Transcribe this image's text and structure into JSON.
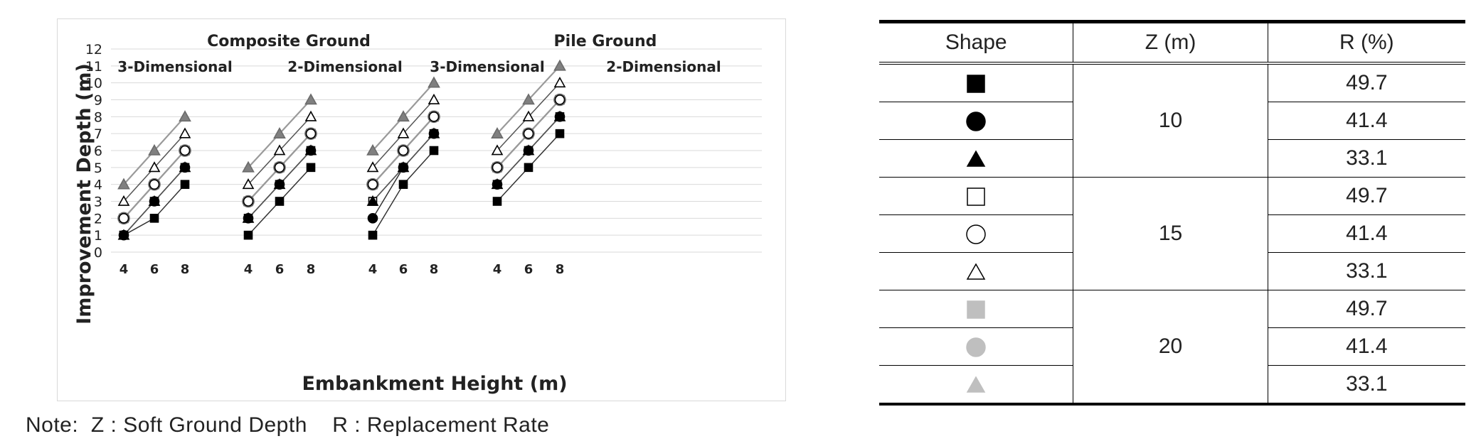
{
  "chart_data": {
    "type": "line",
    "ylabel": "Improvement Depth (m)",
    "xlabel": "Embankment Height (m)",
    "ylim": [
      0,
      12
    ],
    "yticks": [
      0,
      1,
      2,
      3,
      4,
      5,
      6,
      7,
      8,
      9,
      10,
      11,
      12
    ],
    "grid": true,
    "categories": [
      "4",
      "6",
      "8"
    ],
    "group_titles": [
      "Composite Ground",
      "Pile Ground"
    ],
    "panels": [
      {
        "label": "3-Dimensional",
        "group": "Composite Ground",
        "series": [
          {
            "shape": "square",
            "fill": "black",
            "z": 10,
            "r": 49.7,
            "values": [
              1,
              2,
              4
            ]
          },
          {
            "shape": "circle",
            "fill": "black",
            "z": 10,
            "r": 41.4,
            "values": [
              1,
              3,
              5
            ]
          },
          {
            "shape": "triangle",
            "fill": "black",
            "z": 10,
            "r": 33.1,
            "values": [
              1,
              3,
              5
            ]
          },
          {
            "shape": "square",
            "fill": "white",
            "z": 15,
            "r": 49.7,
            "values": [
              1,
              3,
              5
            ]
          },
          {
            "shape": "circle",
            "fill": "white",
            "z": 15,
            "r": 41.4,
            "values": [
              2,
              4,
              6
            ]
          },
          {
            "shape": "triangle",
            "fill": "white",
            "z": 15,
            "r": 33.1,
            "values": [
              3,
              5,
              7
            ]
          },
          {
            "shape": "square",
            "fill": "gray",
            "z": 20,
            "r": 49.7,
            "values": [
              2,
              4,
              6
            ]
          },
          {
            "shape": "circle",
            "fill": "gray",
            "z": 20,
            "r": 41.4,
            "values": [
              2,
              4,
              6
            ]
          },
          {
            "shape": "triangle",
            "fill": "gray",
            "z": 20,
            "r": 33.1,
            "values": [
              4,
              6,
              8
            ]
          }
        ]
      },
      {
        "label": "2-Dimensional",
        "group": "Composite Ground",
        "series": [
          {
            "shape": "square",
            "fill": "black",
            "z": 10,
            "r": 49.7,
            "values": [
              1,
              3,
              5
            ]
          },
          {
            "shape": "circle",
            "fill": "black",
            "z": 10,
            "r": 41.4,
            "values": [
              2,
              4,
              6
            ]
          },
          {
            "shape": "triangle",
            "fill": "black",
            "z": 10,
            "r": 33.1,
            "values": [
              2,
              4,
              6
            ]
          },
          {
            "shape": "square",
            "fill": "white",
            "z": 15,
            "r": 49.7,
            "values": [
              2,
              4,
              6
            ]
          },
          {
            "shape": "circle",
            "fill": "white",
            "z": 15,
            "r": 41.4,
            "values": [
              3,
              5,
              7
            ]
          },
          {
            "shape": "triangle",
            "fill": "white",
            "z": 15,
            "r": 33.1,
            "values": [
              4,
              6,
              8
            ]
          },
          {
            "shape": "square",
            "fill": "gray",
            "z": 20,
            "r": 49.7,
            "values": [
              3,
              5,
              7
            ]
          },
          {
            "shape": "circle",
            "fill": "gray",
            "z": 20,
            "r": 41.4,
            "values": [
              3,
              5,
              7
            ]
          },
          {
            "shape": "triangle",
            "fill": "gray",
            "z": 20,
            "r": 33.1,
            "values": [
              5,
              7,
              9
            ]
          }
        ]
      },
      {
        "label": "3-Dimensional",
        "group": "Pile Ground",
        "series": [
          {
            "shape": "square",
            "fill": "black",
            "z": 10,
            "r": 49.7,
            "values": [
              1,
              4,
              6
            ]
          },
          {
            "shape": "circle",
            "fill": "black",
            "z": 10,
            "r": 41.4,
            "values": [
              2,
              5,
              7
            ]
          },
          {
            "shape": "triangle",
            "fill": "black",
            "z": 10,
            "r": 33.1,
            "values": [
              3,
              5,
              7
            ]
          },
          {
            "shape": "square",
            "fill": "white",
            "z": 15,
            "r": 49.7,
            "values": [
              3,
              5,
              7
            ]
          },
          {
            "shape": "circle",
            "fill": "white",
            "z": 15,
            "r": 41.4,
            "values": [
              4,
              6,
              8
            ]
          },
          {
            "shape": "triangle",
            "fill": "white",
            "z": 15,
            "r": 33.1,
            "values": [
              5,
              7,
              9
            ]
          },
          {
            "shape": "square",
            "fill": "gray",
            "z": 20,
            "r": 49.7,
            "values": [
              4,
              6,
              8
            ]
          },
          {
            "shape": "circle",
            "fill": "gray",
            "z": 20,
            "r": 41.4,
            "values": [
              4,
              6,
              8
            ]
          },
          {
            "shape": "triangle",
            "fill": "gray",
            "z": 20,
            "r": 33.1,
            "values": [
              6,
              8,
              10
            ]
          }
        ]
      },
      {
        "label": "2-Dimensional",
        "group": "Pile Ground",
        "series": [
          {
            "shape": "square",
            "fill": "black",
            "z": 10,
            "r": 49.7,
            "values": [
              3,
              5,
              7
            ]
          },
          {
            "shape": "circle",
            "fill": "black",
            "z": 10,
            "r": 41.4,
            "values": [
              4,
              6,
              8
            ]
          },
          {
            "shape": "triangle",
            "fill": "black",
            "z": 10,
            "r": 33.1,
            "values": [
              4,
              6,
              8
            ]
          },
          {
            "shape": "square",
            "fill": "white",
            "z": 15,
            "r": 49.7,
            "values": [
              4,
              6,
              8
            ]
          },
          {
            "shape": "circle",
            "fill": "white",
            "z": 15,
            "r": 41.4,
            "values": [
              5,
              7,
              9
            ]
          },
          {
            "shape": "triangle",
            "fill": "white",
            "z": 15,
            "r": 33.1,
            "values": [
              6,
              8,
              10
            ]
          },
          {
            "shape": "square",
            "fill": "gray",
            "z": 20,
            "r": 49.7,
            "values": [
              5,
              7,
              9
            ]
          },
          {
            "shape": "circle",
            "fill": "gray",
            "z": 20,
            "r": 41.4,
            "values": [
              5,
              7,
              9
            ]
          },
          {
            "shape": "triangle",
            "fill": "gray",
            "z": 20,
            "r": 33.1,
            "values": [
              7,
              9,
              11
            ]
          }
        ]
      }
    ]
  },
  "legend_table": {
    "headers": [
      "Shape",
      "Z (m)",
      "R (%)"
    ],
    "rows": [
      {
        "shape": "square",
        "fill": "black",
        "r": "49.7"
      },
      {
        "shape": "circle",
        "fill": "black",
        "r": "41.4"
      },
      {
        "shape": "triangle",
        "fill": "black",
        "r": "33.1"
      },
      {
        "shape": "square",
        "fill": "white",
        "r": "49.7"
      },
      {
        "shape": "circle",
        "fill": "white",
        "r": "41.4"
      },
      {
        "shape": "triangle",
        "fill": "white",
        "r": "33.1"
      },
      {
        "shape": "square",
        "fill": "gray",
        "r": "49.7"
      },
      {
        "shape": "circle",
        "fill": "gray",
        "r": "41.4"
      },
      {
        "shape": "triangle",
        "fill": "gray",
        "r": "33.1"
      }
    ],
    "z_groups": [
      "10",
      "15",
      "20"
    ]
  },
  "colors": {
    "black": "#000000",
    "white": "#ffffff",
    "gray": "#808080",
    "legend_gray": "#bfbfbf",
    "gridline": "#d9d9d9"
  },
  "note": {
    "prefix": "Note:",
    "z_def": "Z : Soft Ground Depth",
    "r_def": "R : Replacement Rate"
  }
}
